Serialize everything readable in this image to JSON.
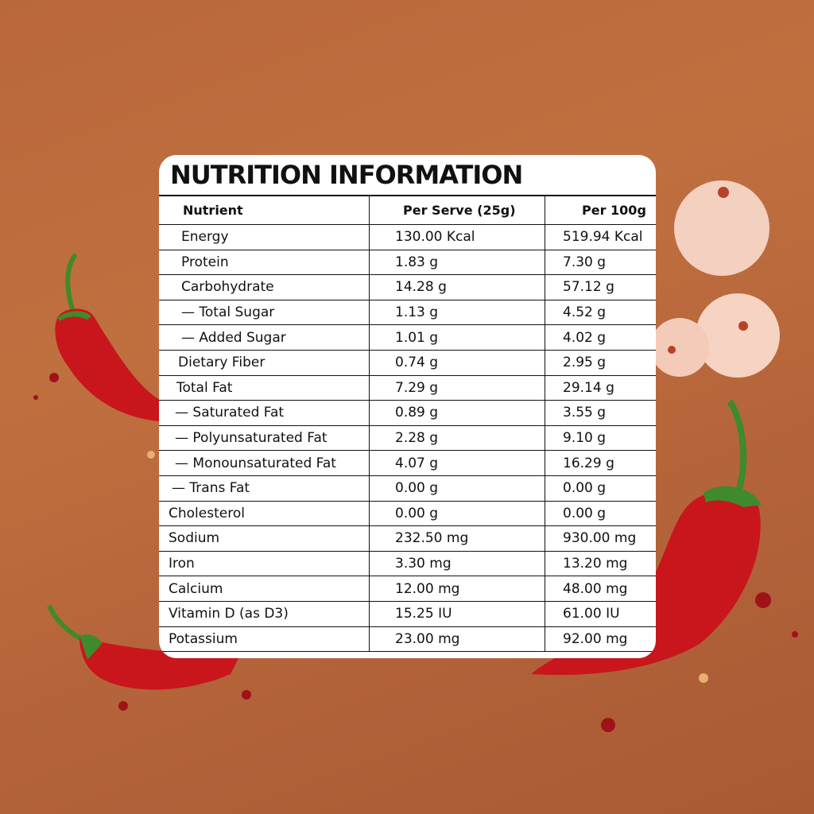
{
  "title": "NUTRITION INFORMATION",
  "table": {
    "header": [
      "Nutrient",
      "Per Serve (25g)",
      "Per 100g"
    ],
    "rows": [
      [
        "Energy",
        "130.00 Kcal",
        "519.94 Kcal"
      ],
      [
        "Protein",
        "1.83 g",
        "7.30 g"
      ],
      [
        "Carbohydrate",
        "14.28 g",
        "57.12 g"
      ],
      [
        "— Total Sugar",
        "1.13 g",
        "4.52 g"
      ],
      [
        "— Added Sugar",
        "1.01 g",
        "4.02 g"
      ],
      [
        "Dietary Fiber",
        "0.74 g",
        "2.95 g"
      ],
      [
        "Total Fat",
        "7.29 g",
        "29.14 g"
      ],
      [
        "— Saturated Fat",
        "0.89 g",
        "3.55 g"
      ],
      [
        "— Polyunsaturated Fat",
        "2.28 g",
        "9.10 g"
      ],
      [
        "— Monounsaturated Fat",
        "4.07 g",
        "16.29 g"
      ],
      [
        "— Trans Fat",
        "0.00 g",
        "0.00 g"
      ],
      [
        "Cholesterol",
        "0.00 g",
        "0.00 g"
      ],
      [
        "Sodium",
        "232.50 mg",
        "930.00 mg"
      ],
      [
        "Iron",
        "3.30 mg",
        "13.20 mg"
      ],
      [
        "Calcium",
        "12.00 mg",
        "48.00 mg"
      ],
      [
        "Vitamin D (as D3)",
        "15.25 IU",
        "61.00 IU"
      ],
      [
        "Potassium",
        "23.00 mg",
        "92.00 mg"
      ]
    ]
  }
}
